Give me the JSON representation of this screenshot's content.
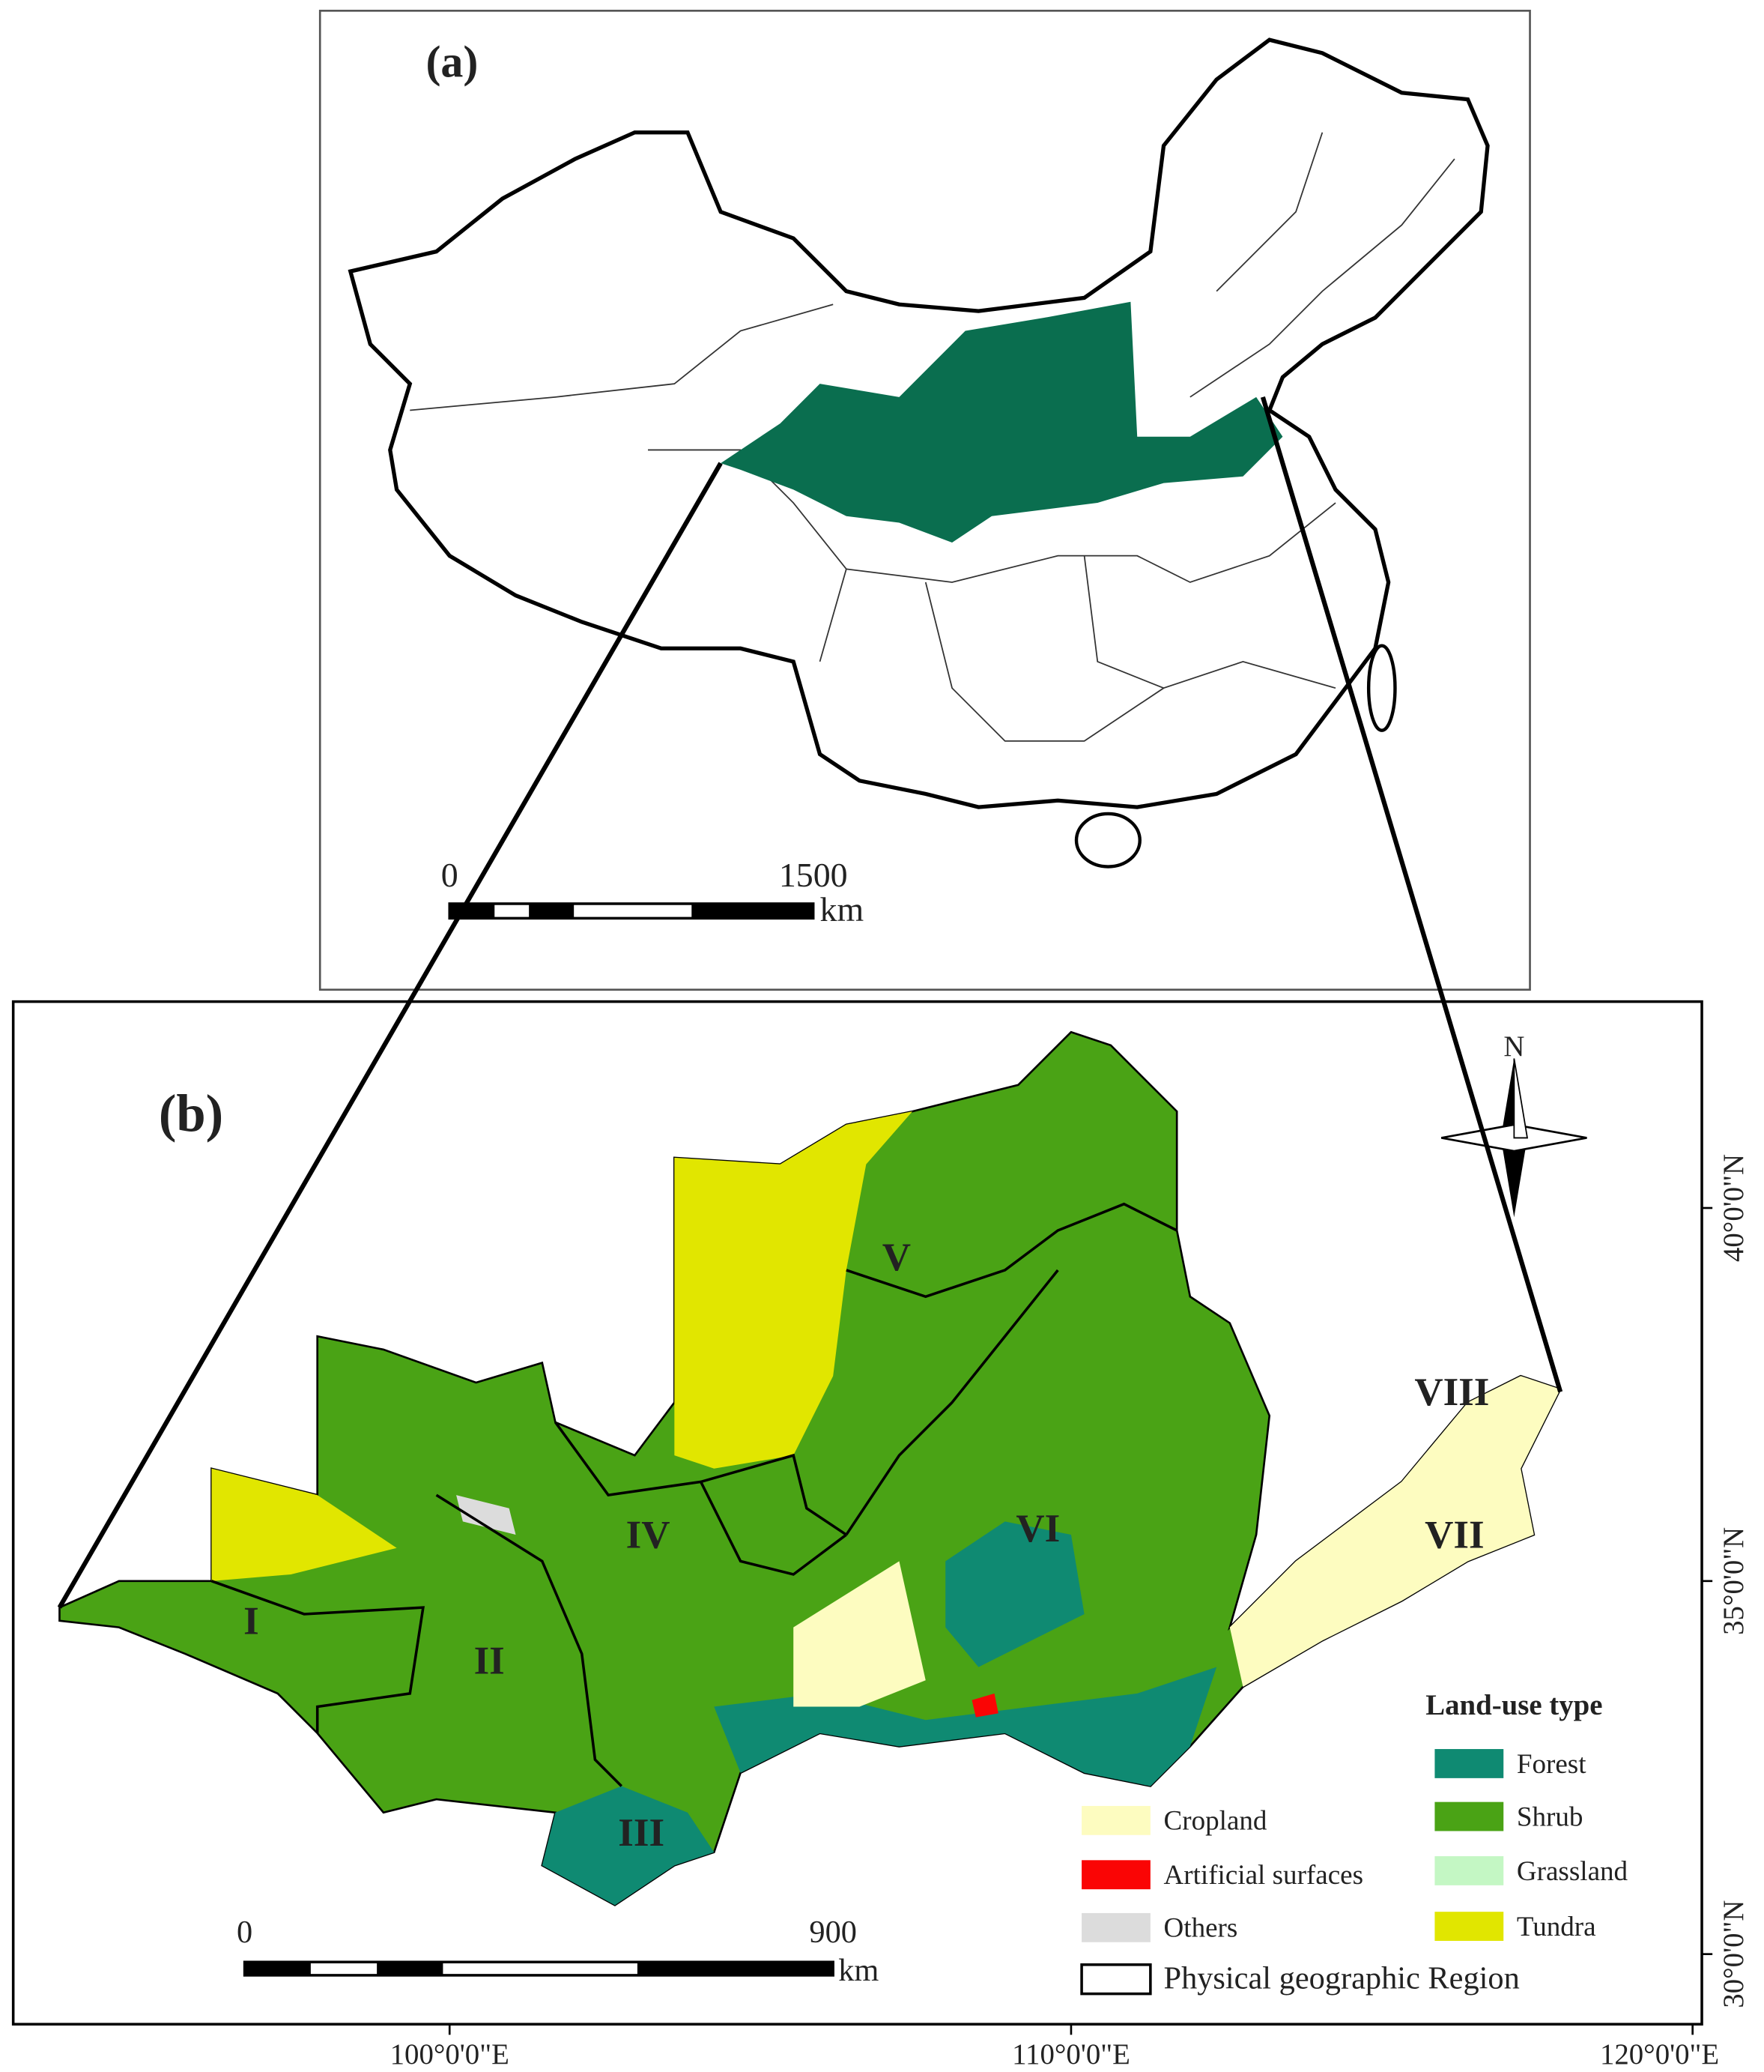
{
  "panel_a": {
    "label": "(a)",
    "scale_bar": {
      "start": "0",
      "end": "1500",
      "unit": "km"
    },
    "study_area_color": "#0a6e4f"
  },
  "panel_b": {
    "label": "(b)",
    "north": "N",
    "regions": [
      "I",
      "II",
      "III",
      "IV",
      "V",
      "VI",
      "VII",
      "VIII"
    ],
    "scale_bar": {
      "start": "0",
      "end": "900",
      "unit": "km"
    },
    "x_ticks": [
      "100°0'0\"E",
      "110°0'0\"E",
      "120°0'0\"E"
    ],
    "y_ticks": [
      "40°0'0\"N",
      "35°0'0\"N",
      "30°0'0\"N"
    ],
    "legend": {
      "title": "Land-use type",
      "items": [
        {
          "label": "Forest",
          "color": "#0f8a72"
        },
        {
          "label": "Shrub",
          "color": "#4aa315"
        },
        {
          "label": "Grassland",
          "color": "#c4f7c4"
        },
        {
          "label": "Tundra",
          "color": "#e1e600"
        },
        {
          "label": "Cropland",
          "color": "#fdfcc0"
        },
        {
          "label": "Artificial surfaces",
          "color": "#fa0505"
        },
        {
          "label": "Others",
          "color": "#dcdcdc"
        },
        {
          "label": "Physical geographic Region",
          "color": "#ffffff"
        }
      ]
    }
  }
}
